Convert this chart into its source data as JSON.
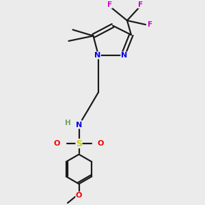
{
  "bg_color": "#ebebeb",
  "bond_color": "#1a1a1a",
  "nitrogen_color": "#0000ee",
  "oxygen_color": "#ee0000",
  "fluorine_color": "#cc00cc",
  "sulfur_color": "#cccc00",
  "h_color": "#6fa060",
  "line_width": 1.6,
  "figsize": [
    3.0,
    3.0
  ],
  "dpi": 100,
  "xlim": [
    0,
    10
  ],
  "ylim": [
    0,
    10
  ]
}
